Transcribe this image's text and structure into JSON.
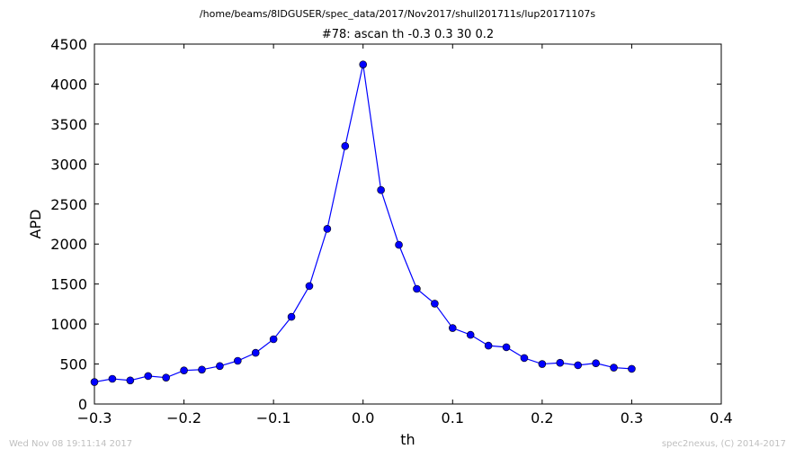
{
  "suptitle": "/home/beams/8IDGUSER/spec_data/2017/Nov2017/shull201711s/lup20171107s",
  "footer": {
    "timestamp": "Wed Nov 08 19:11:14 2017",
    "credit": "spec2nexus, (C) 2014-2017"
  },
  "chart_data": {
    "type": "line",
    "title": "#78: ascan  th -0.3 0.3  30 0.2",
    "xlabel": "th",
    "ylabel": "APD",
    "xlim": [
      -0.3,
      0.4
    ],
    "ylim": [
      0,
      4500
    ],
    "xticks": [
      -0.3,
      -0.2,
      -0.1,
      0.0,
      0.1,
      0.2,
      0.3,
      0.4
    ],
    "xtick_labels": [
      "−0.3",
      "−0.2",
      "−0.1",
      "0.0",
      "0.1",
      "0.2",
      "0.3",
      "0.4"
    ],
    "yticks": [
      0,
      500,
      1000,
      1500,
      2000,
      2500,
      3000,
      3500,
      4000,
      4500
    ],
    "ytick_labels": [
      "0",
      "500",
      "1000",
      "1500",
      "2000",
      "2500",
      "3000",
      "3500",
      "4000",
      "4500"
    ],
    "grid": false,
    "marker": "circle",
    "color": "#0000ff",
    "series": [
      {
        "x": [
          -0.3,
          -0.28,
          -0.26,
          -0.24,
          -0.22,
          -0.2,
          -0.18,
          -0.16,
          -0.14,
          -0.12,
          -0.1,
          -0.08,
          -0.06,
          -0.04,
          -0.02,
          0.0,
          0.02,
          0.04,
          0.06,
          0.08,
          0.1,
          0.12,
          0.14,
          0.16,
          0.18,
          0.2,
          0.22,
          0.24,
          0.26,
          0.28,
          0.3
        ],
        "y": [
          275,
          315,
          295,
          350,
          330,
          420,
          430,
          475,
          540,
          640,
          810,
          1090,
          1475,
          2190,
          3225,
          4245,
          2675,
          1990,
          1440,
          1255,
          950,
          865,
          730,
          710,
          575,
          500,
          515,
          485,
          510,
          455,
          440
        ]
      }
    ]
  }
}
